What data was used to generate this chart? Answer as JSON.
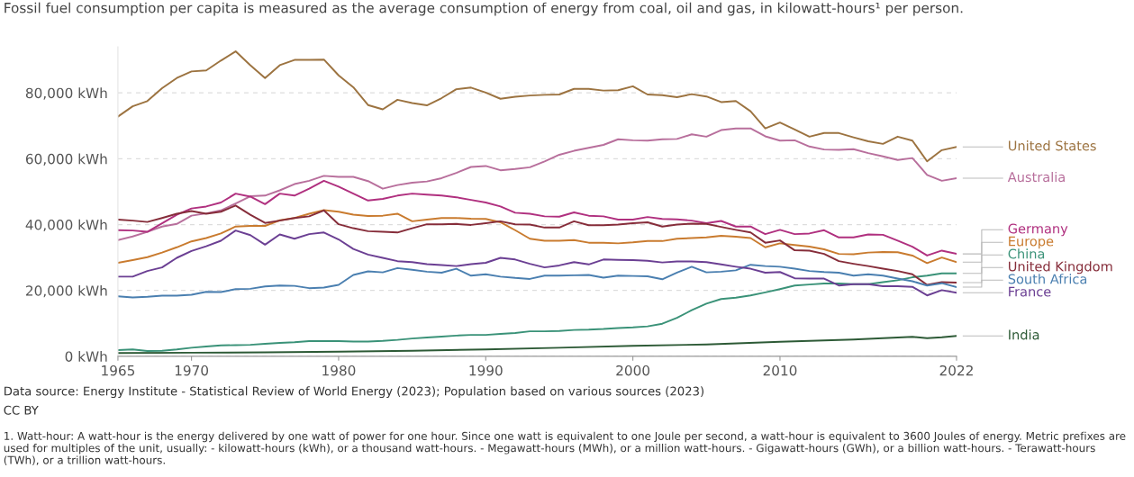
{
  "chart_data": {
    "type": "line",
    "subtitle": "Fossil fuel consumption per capita is measured as the average consumption of energy from coal, oil and gas, in kilowatt-hours¹ per person.",
    "x": [
      1965,
      1966,
      1967,
      1968,
      1969,
      1970,
      1971,
      1972,
      1973,
      1974,
      1975,
      1976,
      1977,
      1978,
      1979,
      1980,
      1981,
      1982,
      1983,
      1984,
      1985,
      1986,
      1987,
      1988,
      1989,
      1990,
      1991,
      1992,
      1993,
      1994,
      1995,
      1996,
      1997,
      1998,
      1999,
      2000,
      2001,
      2002,
      2003,
      2004,
      2005,
      2006,
      2007,
      2008,
      2009,
      2010,
      2011,
      2012,
      2013,
      2014,
      2015,
      2016,
      2017,
      2018,
      2019,
      2020,
      2021,
      2022
    ],
    "xlim": [
      1965,
      2022
    ],
    "xticks": [
      1965,
      1970,
      1980,
      1990,
      2000,
      2010,
      2022
    ],
    "ylim": [
      0,
      94000
    ],
    "yticks": [
      {
        "value": 0,
        "label": "0 kWh"
      },
      {
        "value": 20000,
        "label": "20,000 kWh"
      },
      {
        "value": 40000,
        "label": "40,000 kWh"
      },
      {
        "value": 60000,
        "label": "60,000 kWh"
      },
      {
        "value": 80000,
        "label": "80,000 kWh"
      }
    ],
    "grid": "y",
    "series": [
      {
        "name": "United States",
        "color": "#9c7340",
        "values": [
          72800,
          75900,
          77500,
          81400,
          84500,
          86500,
          86800,
          89800,
          92600,
          88400,
          84500,
          88400,
          90000,
          90000,
          90100,
          85300,
          81700,
          76300,
          75000,
          77900,
          76900,
          76200,
          78400,
          81100,
          81600,
          80100,
          78200,
          78800,
          79200,
          79400,
          79500,
          81200,
          81200,
          80700,
          80800,
          82000,
          79500,
          79300,
          78700,
          79600,
          78900,
          77200,
          77500,
          74400,
          69200,
          71000,
          68900,
          66700,
          67800,
          67800,
          66500,
          65300,
          64500,
          66700,
          65500,
          59200,
          62600,
          63600
        ]
      },
      {
        "name": "Australia",
        "color": "#b86f9c",
        "values": [
          35300,
          36400,
          37800,
          39400,
          40200,
          42700,
          43400,
          44300,
          46400,
          48600,
          48800,
          50400,
          52300,
          53300,
          54800,
          54500,
          54500,
          53200,
          50900,
          52000,
          52700,
          53100,
          54100,
          55700,
          57500,
          57800,
          56500,
          56900,
          57400,
          59200,
          61200,
          62400,
          63300,
          64200,
          65900,
          65600,
          65500,
          65900,
          66000,
          67400,
          66700,
          68700,
          69200,
          69200,
          66800,
          65500,
          65600,
          63700,
          62800,
          62700,
          62900,
          61700,
          60700,
          59600,
          60200,
          55100,
          53300,
          54100
        ]
      },
      {
        "name": "Germany",
        "color": "#b0307f",
        "values": [
          38300,
          38200,
          37800,
          40400,
          43000,
          44900,
          45500,
          46700,
          49400,
          48500,
          46200,
          49400,
          48800,
          50900,
          53300,
          51500,
          49400,
          47300,
          47800,
          48800,
          49400,
          49100,
          48800,
          48300,
          47500,
          46700,
          45500,
          43600,
          43300,
          42500,
          42400,
          43700,
          42700,
          42500,
          41500,
          41500,
          42300,
          41700,
          41600,
          41200,
          40400,
          41100,
          39400,
          39400,
          37100,
          38400,
          37100,
          37300,
          38300,
          36100,
          36100,
          37000,
          36900,
          35100,
          33300,
          30600,
          32100,
          31100
        ]
      },
      {
        "name": "Europe",
        "color": "#c97b2f",
        "values": [
          28400,
          29200,
          30100,
          31500,
          33100,
          34900,
          35900,
          37300,
          39400,
          39600,
          39600,
          41300,
          42000,
          43300,
          44400,
          43900,
          43000,
          42600,
          42700,
          43300,
          41000,
          41500,
          42000,
          42000,
          41800,
          41700,
          40700,
          38300,
          35700,
          35100,
          35100,
          35300,
          34500,
          34500,
          34300,
          34600,
          35000,
          35000,
          35700,
          35900,
          36100,
          36600,
          36300,
          35900,
          33100,
          34300,
          33800,
          33300,
          32500,
          31100,
          31000,
          31500,
          31700,
          31600,
          30600,
          28300,
          30000,
          28600
        ]
      },
      {
        "name": "China",
        "color": "#3a9278",
        "values": [
          1900,
          2100,
          1600,
          1700,
          2100,
          2600,
          3000,
          3300,
          3400,
          3500,
          3800,
          4100,
          4300,
          4600,
          4600,
          4600,
          4500,
          4500,
          4700,
          5000,
          5400,
          5700,
          6000,
          6300,
          6500,
          6500,
          6800,
          7100,
          7600,
          7600,
          7700,
          8000,
          8100,
          8300,
          8600,
          8800,
          9100,
          9900,
          11700,
          14000,
          16000,
          17400,
          17800,
          18500,
          19400,
          20400,
          21500,
          21800,
          22100,
          22100,
          21900,
          21900,
          22500,
          23100,
          24000,
          24500,
          25200,
          25200
        ]
      },
      {
        "name": "United Kingdom",
        "color": "#862d3a",
        "values": [
          41500,
          41200,
          40800,
          42000,
          43300,
          44100,
          43300,
          43900,
          45800,
          43000,
          40500,
          41200,
          42000,
          42500,
          44300,
          40100,
          38900,
          38000,
          37800,
          37600,
          38900,
          40100,
          40100,
          40200,
          39900,
          40400,
          41000,
          40100,
          40000,
          39100,
          39100,
          41000,
          39800,
          39800,
          40000,
          40400,
          40700,
          39400,
          40000,
          40300,
          40200,
          39300,
          38400,
          37600,
          34500,
          35200,
          32200,
          32100,
          31100,
          28900,
          28100,
          27400,
          26600,
          25900,
          24900,
          21700,
          22500,
          22400
        ]
      },
      {
        "name": "South Africa",
        "color": "#4a7fb0",
        "values": [
          18200,
          17900,
          18100,
          18400,
          18400,
          18700,
          19600,
          19500,
          20400,
          20500,
          21200,
          21500,
          21400,
          20700,
          20900,
          21700,
          24700,
          25800,
          25500,
          26800,
          26300,
          25700,
          25400,
          26600,
          24500,
          24900,
          24200,
          23800,
          23500,
          24500,
          24500,
          24600,
          24700,
          23900,
          24500,
          24400,
          24300,
          23400,
          25400,
          27200,
          25500,
          25700,
          26100,
          27800,
          27400,
          27200,
          26600,
          25900,
          25600,
          25400,
          24500,
          24900,
          24500,
          23600,
          22800,
          21500,
          22200,
          21000
        ]
      },
      {
        "name": "France",
        "color": "#6b3f93",
        "values": [
          24200,
          24200,
          25900,
          27000,
          29900,
          32000,
          33400,
          35100,
          38200,
          36800,
          33900,
          37000,
          35700,
          37100,
          37600,
          35500,
          32600,
          30900,
          29900,
          28900,
          28600,
          28000,
          27700,
          27400,
          28000,
          28400,
          29900,
          29400,
          28100,
          27000,
          27600,
          28600,
          27900,
          29400,
          29300,
          29200,
          29000,
          28500,
          28800,
          28800,
          28600,
          27900,
          27200,
          26600,
          25400,
          25600,
          23700,
          23600,
          23600,
          21500,
          21900,
          21900,
          21300,
          21300,
          21100,
          18500,
          20100,
          19300
        ]
      },
      {
        "name": "India",
        "color": "#2d5a36",
        "x": [
          1965,
          1970,
          1975,
          1980,
          1985,
          1990,
          1995,
          2000,
          2005,
          2010,
          2015,
          2019,
          2020,
          2021,
          2022
        ],
        "values": [
          1000,
          1100,
          1200,
          1400,
          1700,
          2100,
          2600,
          3200,
          3600,
          4400,
          5100,
          5900,
          5500,
          5800,
          6200
        ]
      }
    ],
    "annotations": [
      "Data source: Energy Institute - Statistical Review of World Energy (2023); Population based on various sources (2023)",
      "CC BY",
      "1. Watt-hour: A watt-hour is the energy delivered by one watt of power for one hour. Since one watt is equivalent to one Joule per second, a watt-hour is equivalent to 3600 Joules of energy. Metric prefixes are used for multiples of the unit, usually: - kilowatt-hours (kWh), or a thousand watt-hours. - Megawatt-hours (MWh), or a million watt-hours. - Gigawatt-hours (GWh), or a billion watt-hours. - Terawatt-hours (TWh), or a trillion watt-hours."
    ]
  }
}
